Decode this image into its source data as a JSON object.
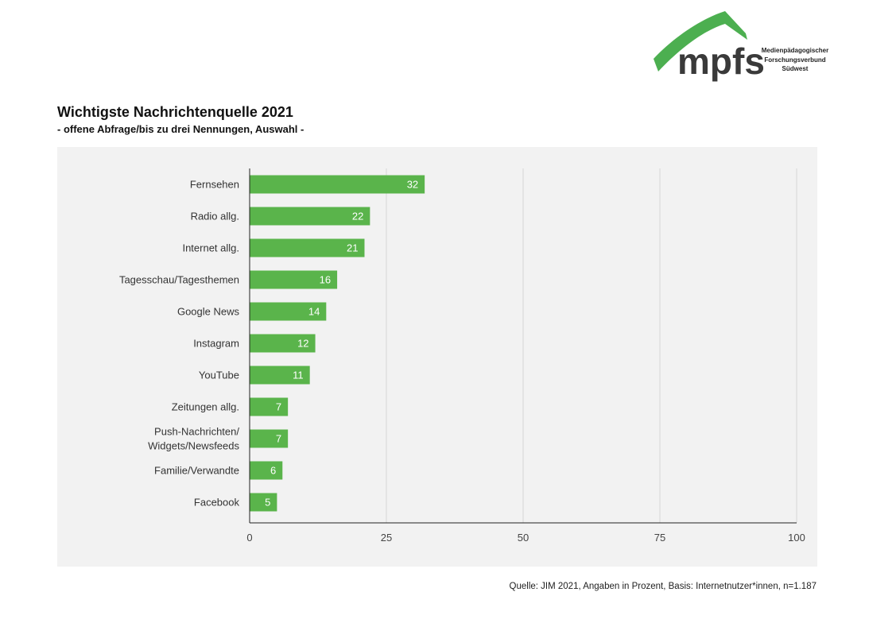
{
  "logo": {
    "text": "mpfs",
    "subtitle_lines": [
      "Medienpädagogischer",
      "Forschungsverbund",
      "Südwest"
    ],
    "colors": {
      "roof": "#4caf50",
      "text": "#3a3a3a"
    }
  },
  "title": "Wichtigste Nachrichtenquelle 2021",
  "subtitle": "- offene Abfrage/bis zu drei Nennungen, Auswahl -",
  "source": "Quelle: JIM 2021, Angaben in Prozent, Basis: Internetnutzer*innen, n=1.187",
  "chart_data": {
    "type": "bar",
    "orientation": "horizontal",
    "categories": [
      "Fernsehen",
      "Radio allg.",
      "Internet allg.",
      "Tagesschau/Tagesthemen",
      "Google News",
      "Instagram",
      "YouTube",
      "Zeitungen allg.",
      "Push-Nachrichten/\nWidgets/Newsfeeds",
      "Familie/Verwandte",
      "Facebook"
    ],
    "values": [
      32,
      22,
      21,
      16,
      14,
      12,
      11,
      7,
      7,
      6,
      5
    ],
    "xlim": [
      0,
      100
    ],
    "xticks": [
      0,
      25,
      50,
      75,
      100
    ],
    "grid": true,
    "colors": {
      "bar": "#5ab44b",
      "panel": "#f2f2f2",
      "grid": "#d6d6d6",
      "axis": "#222222",
      "label": "#ffffff"
    }
  }
}
